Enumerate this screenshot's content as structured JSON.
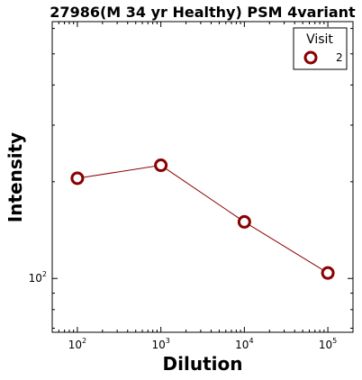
{
  "chart_data": {
    "type": "line",
    "title": "27986(M 34 yr Healthy) PSM 4variant",
    "xlabel": "Dilution",
    "ylabel": "Intensity",
    "x_scale": "log",
    "y_scale": "log",
    "xlim": [
      50,
      200000
    ],
    "ylim": [
      68,
      630
    ],
    "x": [
      100,
      1000,
      10000,
      100000
    ],
    "x_ticks": [
      {
        "value": 100,
        "base": "10",
        "exp": "2"
      },
      {
        "value": 1000,
        "base": "10",
        "exp": "3"
      },
      {
        "value": 10000,
        "base": "10",
        "exp": "4"
      },
      {
        "value": 100000,
        "base": "10",
        "exp": "5"
      }
    ],
    "y_ticks": [
      {
        "value": 100,
        "base": "10",
        "exp": "2"
      }
    ],
    "series": [
      {
        "name": "2",
        "values": [
          205,
          225,
          150,
          104
        ],
        "color": "#8b0000",
        "marker": "open-circle"
      }
    ],
    "legend": {
      "title": "Visit",
      "position": "top-right"
    },
    "grid": false
  }
}
